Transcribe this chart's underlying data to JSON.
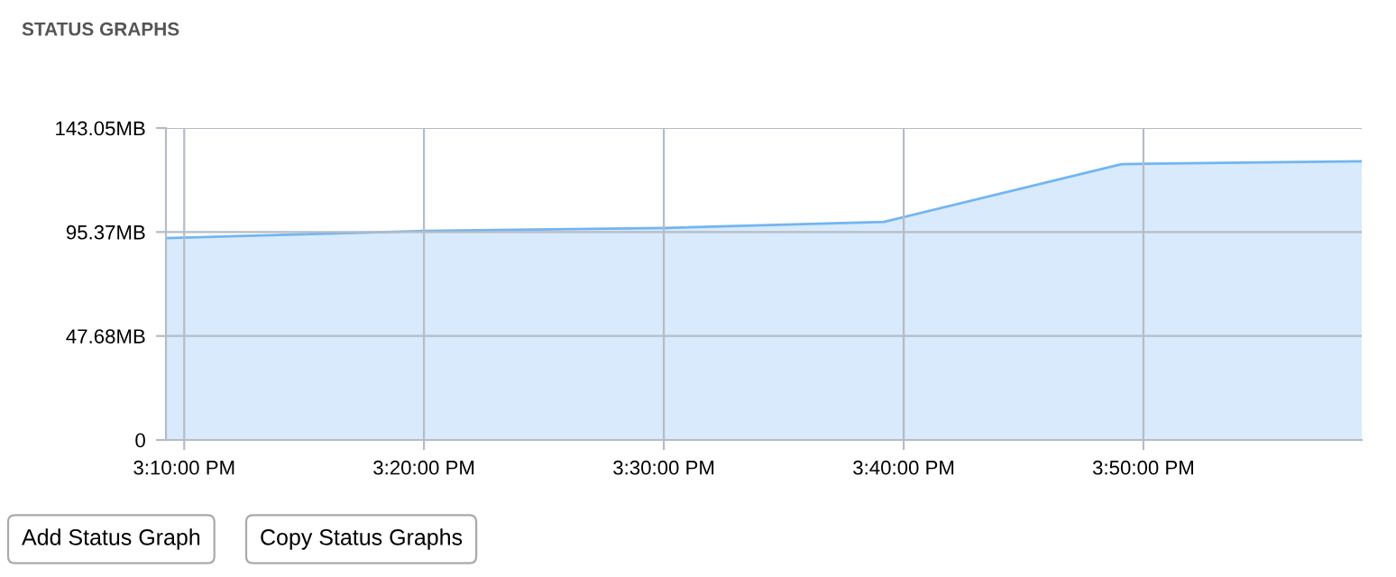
{
  "chart_data": {
    "type": "area",
    "title": "STATUS GRAPHS",
    "x": [
      15.154,
      15.3345,
      15.501,
      15.653,
      15.818,
      15.985
    ],
    "series": [
      {
        "color": "#72b5f2",
        "values": [
          92.6,
          95.9,
          97.2,
          100.0,
          126.5,
          127.8
        ]
      }
    ],
    "xlim": [
      15.154,
      15.985
    ],
    "xticks": [
      {
        "value": 15.1667,
        "label": "3:10:00 PM"
      },
      {
        "value": 15.3333,
        "label": "3:20:00 PM"
      },
      {
        "value": 15.5,
        "label": "3:30:00 PM"
      },
      {
        "value": 15.6667,
        "label": "3:40:00 PM"
      },
      {
        "value": 15.8333,
        "label": "3:50:00 PM"
      }
    ],
    "ylim": [
      0,
      143.05
    ],
    "yticks": [
      {
        "value": 0,
        "label": "0"
      },
      {
        "value": 47.68,
        "label": "47.68MB"
      },
      {
        "value": 95.37,
        "label": "95.37MB"
      },
      {
        "value": 143.05,
        "label": "143.05MB"
      }
    ],
    "grid": true,
    "annotations": [
      "Add Status Graph",
      "Copy Status Graphs"
    ]
  }
}
